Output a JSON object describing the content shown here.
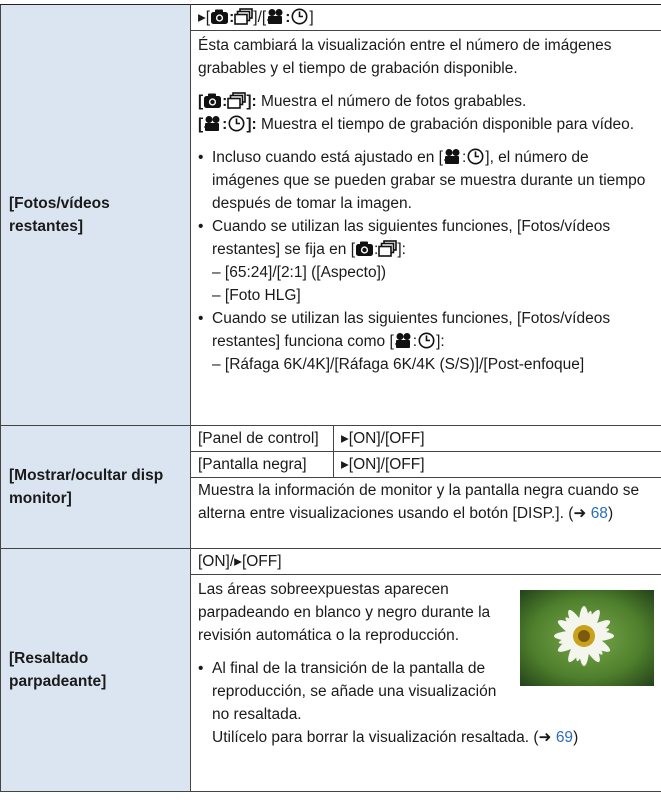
{
  "rows": [
    {
      "label": "[Fotos/vídeos restantes]",
      "options": {
        "prefix": "▸[",
        "middle": "]/[",
        "suffix": "]"
      },
      "description": "Ésta cambiará la visualización entre el número de imágenes grabables y el tiempo de grabación disponible.",
      "items": [
        {
          "open": "[",
          "close": "]:",
          "text": " Muestra el número de fotos grabables."
        },
        {
          "open": "[",
          "close": "]:",
          "text": " Muestra el tiempo de grabación disponible para vídeo."
        }
      ],
      "notes": [
        {
          "before": "Incluso cuando está ajustado en [",
          "after": "], el número de imágenes que se pueden grabar se muestra durante un tiempo después de tomar la imagen."
        },
        {
          "before": "Cuando se utilizan las siguientes funciones, [Fotos/vídeos restantes] se fija en [",
          "after": "]:",
          "sub": [
            "– [65:24]/[2:1] ([Aspecto])",
            "– [Foto HLG]"
          ]
        },
        {
          "before": "Cuando se utilizan las siguientes funciones, [Fotos/vídeos restantes] funciona como [",
          "after": "]:",
          "sub": [
            "– [Ráfaga 6K/4K]/[Ráfaga 6K/4K (S/S)]/[Post-enfoque]"
          ]
        }
      ]
    },
    {
      "label": "[Mostrar/ocultar disp monitor]",
      "settings": [
        [
          "[Panel de control]",
          "▸[ON]/[OFF]"
        ],
        [
          "[Pantalla negra]",
          "▸[ON]/[OFF]"
        ]
      ],
      "description": "Muestra la información de monitor y la pantalla negra cuando se alterna entre visualizaciones usando el botón [DISP.]. (➜ ",
      "link": "68",
      "close": ")"
    },
    {
      "label": "[Resaltado parpadeante]",
      "options": "[ON]/▸[OFF]",
      "description": "Las áreas sobreexpuestas aparecen parpadeando en blanco y negro durante la revisión automática o la reproducción.",
      "note": "Al final de la transición de la pantalla de reproducción, se añade una visualización no resaltada.",
      "note_extra": "Utilícelo para borrar la visualización resaltada. (➜ ",
      "link": "69",
      "close": ")"
    }
  ]
}
